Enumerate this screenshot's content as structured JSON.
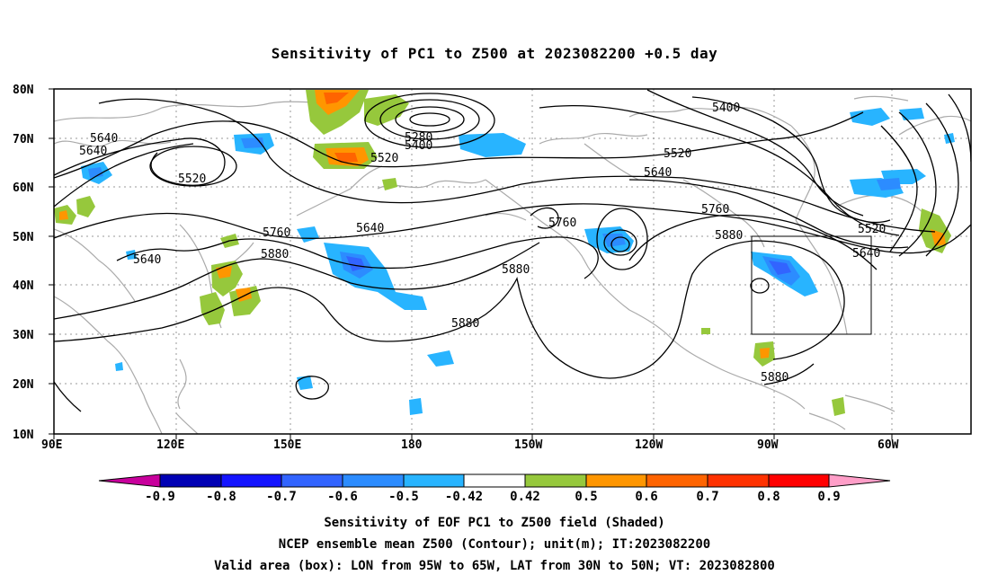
{
  "title": "Sensitivity of PC1 to Z500 at 2023082200 +0.5 day",
  "map": {
    "lat_labels": [
      "80N",
      "70N",
      "60N",
      "50N",
      "40N",
      "30N",
      "20N",
      "10N"
    ],
    "lon_labels": [
      "90E",
      "120E",
      "150E",
      "180",
      "150W",
      "120W",
      "90W",
      "60W"
    ],
    "contour_labels": [
      "5280",
      "5400",
      "5400",
      "5520",
      "5520",
      "5520",
      "5520",
      "5640",
      "5640",
      "5640",
      "5640",
      "5640",
      "5640",
      "5760",
      "5760",
      "5760",
      "5880",
      "5880",
      "5880",
      "5880",
      "5880"
    ],
    "valid_box": {
      "lon_west": "95W",
      "lon_east": "65W",
      "lat_south": "30N",
      "lat_north": "50N"
    },
    "colors": {
      "neg_0_9_below": "#c8009c",
      "neg_0_9": "#0000b4",
      "neg_0_8": "#1414ff",
      "neg_0_7": "#3264ff",
      "neg_0_6": "#2c8cff",
      "neg_0_5": "#28b4ff",
      "neutral": "#ffffff",
      "pos_0_42": "#96c83c",
      "pos_0_5": "#ff9600",
      "pos_0_6": "#ff6400",
      "pos_0_7": "#ff3200",
      "pos_0_8": "#ff0000",
      "pos_0_9_above": "#ff9ec8",
      "coastline": "#aaaaaa"
    }
  },
  "colorbar": {
    "ticks": [
      "-0.9",
      "-0.8",
      "-0.7",
      "-0.6",
      "-0.5",
      "-0.42",
      "0.42",
      "0.5",
      "0.6",
      "0.7",
      "0.8",
      "0.9"
    ]
  },
  "captions": {
    "line1": "Sensitivity of EOF PC1 to Z500 field (Shaded)",
    "line2": "NCEP ensemble mean Z500 (Contour); unit(m); IT:2023082200",
    "line3": "Valid area (box): LON from 95W to 65W, LAT from 30N to 50N; VT: 2023082800"
  }
}
